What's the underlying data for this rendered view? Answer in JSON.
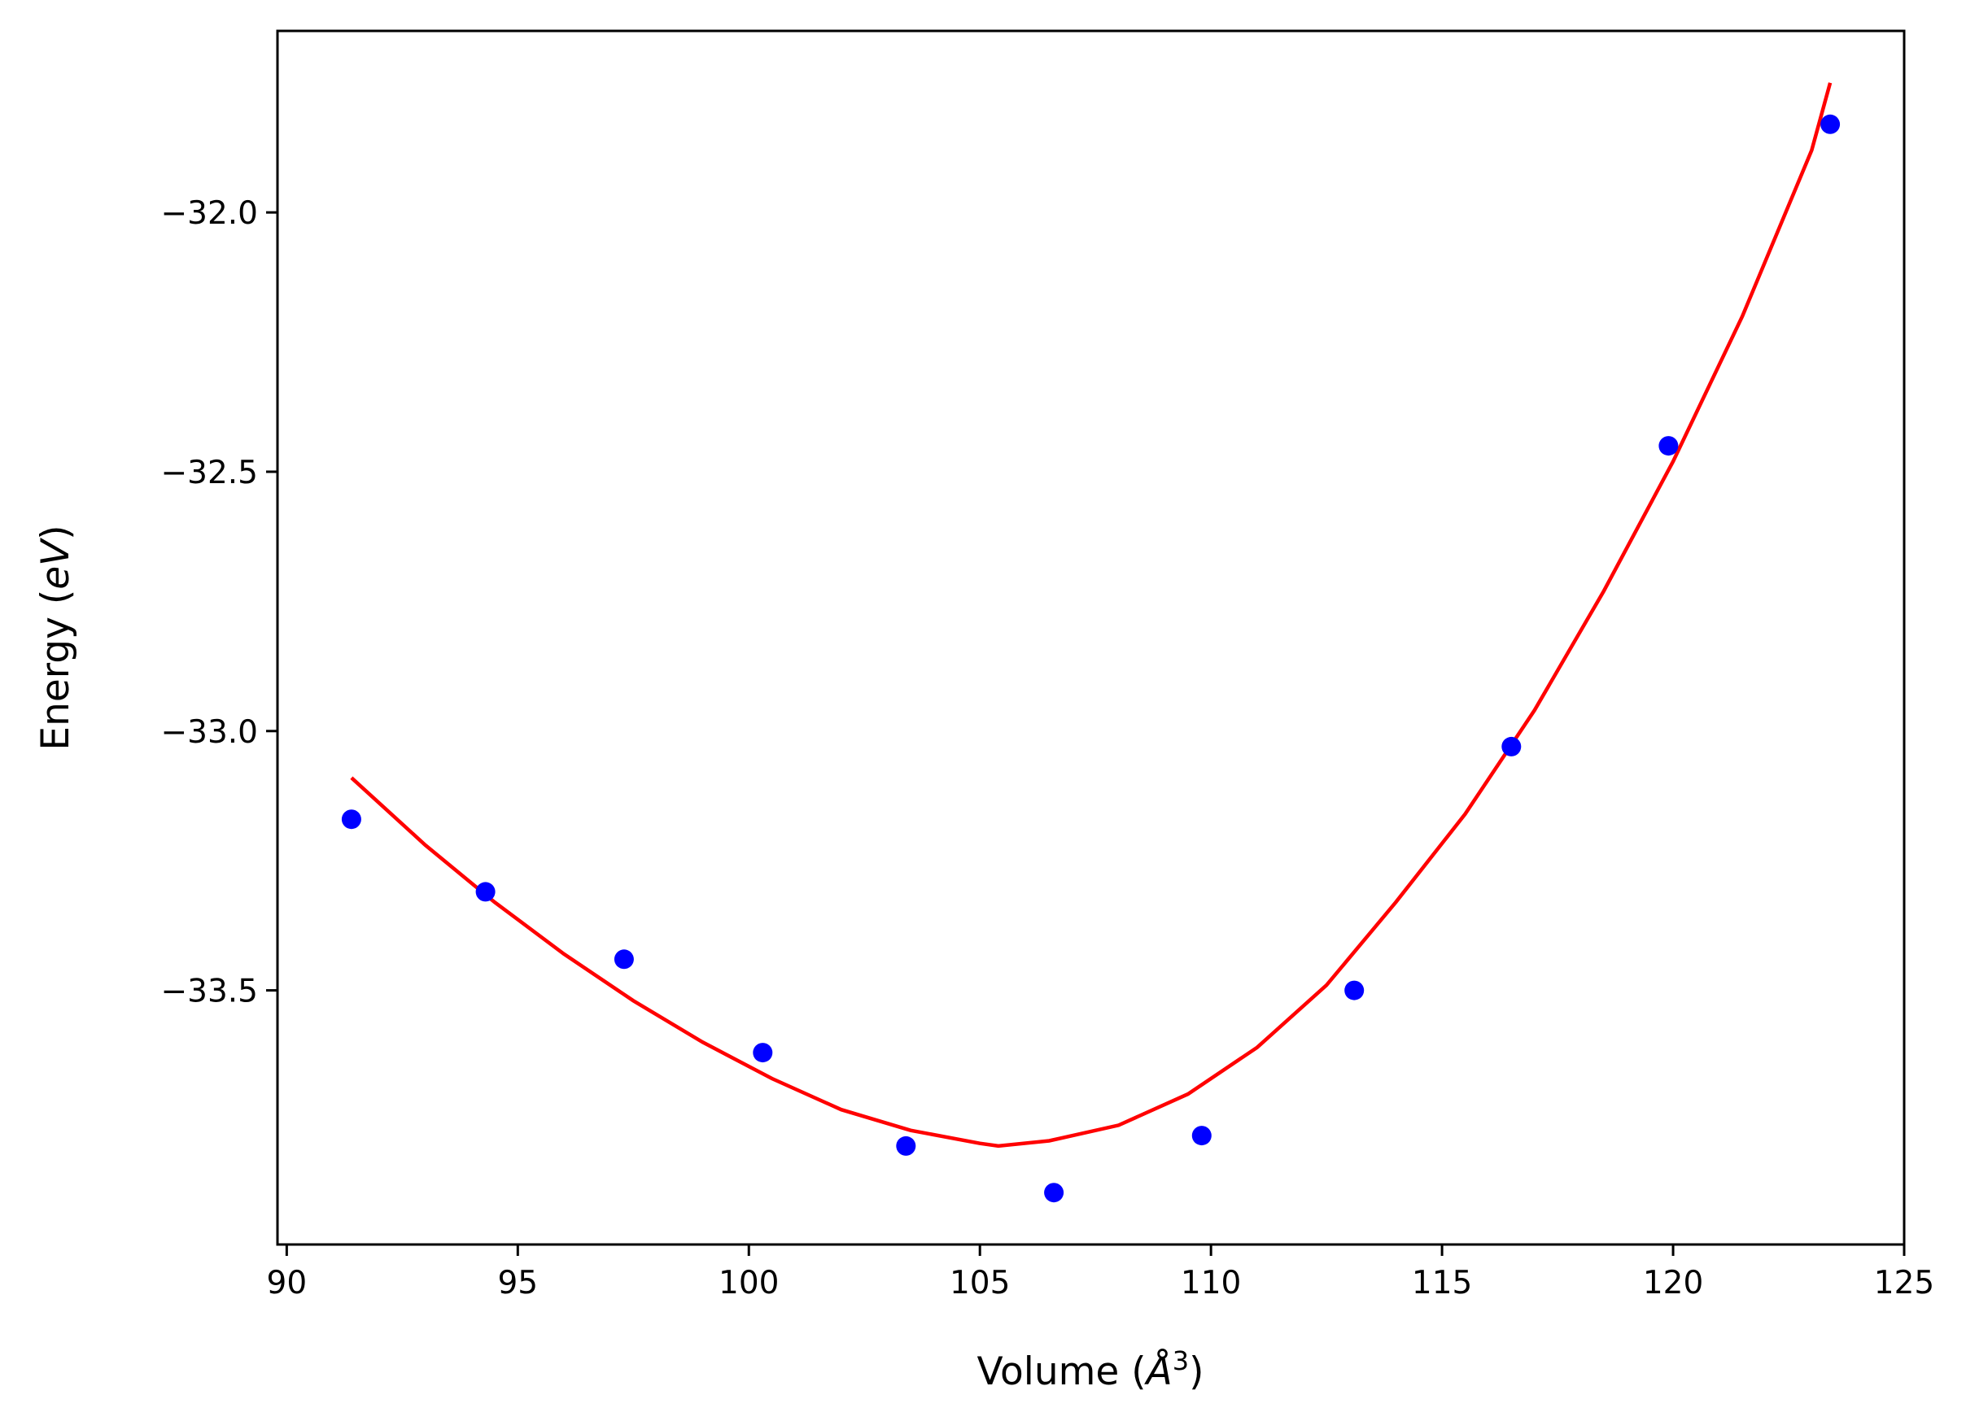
{
  "chart_data": {
    "type": "scatter",
    "xlabel": {
      "prefix": "Volume (",
      "symbol": "Å",
      "superscript": "3",
      "suffix": ")"
    },
    "ylabel": {
      "prefix": "Energy (",
      "unit": "eV",
      "suffix": ")"
    },
    "xlim": [
      89.8,
      125.0
    ],
    "ylim": [
      -33.99,
      -31.65
    ],
    "x_ticks": [
      90,
      95,
      100,
      105,
      110,
      115,
      120,
      125
    ],
    "x_tick_labels": [
      "90",
      "95",
      "100",
      "105",
      "110",
      "115",
      "120",
      "125"
    ],
    "y_ticks": [
      -32.0,
      -32.5,
      -33.0,
      -33.5
    ],
    "y_tick_labels": [
      "−32.0",
      "−32.5",
      "−33.0",
      "−33.5"
    ],
    "grid": false,
    "legend": "none",
    "series": [
      {
        "type": "scatter",
        "color": "#0000ff",
        "x": [
          91.4,
          94.3,
          97.3,
          100.3,
          103.4,
          106.6,
          109.8,
          113.1,
          116.5,
          119.9,
          123.4
        ],
        "y": [
          -33.17,
          -33.31,
          -33.44,
          -33.62,
          -33.8,
          -33.89,
          -33.78,
          -33.5,
          -33.03,
          -32.45,
          -31.83
        ]
      },
      {
        "type": "line",
        "color": "#ff0000",
        "x": [
          91.4,
          93.0,
          94.5,
          96.0,
          97.5,
          99.0,
          100.5,
          102.0,
          103.5,
          105.0,
          105.4,
          106.5,
          108.0,
          109.5,
          111.0,
          112.5,
          114.0,
          115.5,
          117.0,
          118.5,
          120.0,
          121.5,
          123.0,
          123.4
        ],
        "y": [
          -33.09,
          -33.22,
          -33.33,
          -33.43,
          -33.52,
          -33.6,
          -33.67,
          -33.73,
          -33.77,
          -33.795,
          -33.8,
          -33.79,
          -33.76,
          -33.7,
          -33.61,
          -33.49,
          -33.33,
          -33.16,
          -32.96,
          -32.73,
          -32.48,
          -32.2,
          -31.88,
          -31.75
        ]
      }
    ]
  }
}
